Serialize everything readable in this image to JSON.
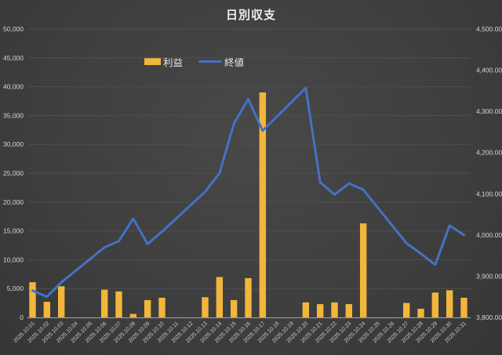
{
  "chart_data": {
    "type": "combo-bar-line",
    "title": "日別収支",
    "legend_position": "top",
    "grid": true,
    "categories": [
      "2025.10.01",
      "2025.10.02",
      "2025.10.03",
      "2025.10.04",
      "2025.10.05",
      "2025.10.06",
      "2025.10.07",
      "2025.10.08",
      "2025.10.09",
      "2025.10.10",
      "2025.10.11",
      "2025.10.12",
      "2025.10.13",
      "2025.10.14",
      "2025.10.15",
      "2025.10.16",
      "2025.10.17",
      "2025.10.18",
      "2025.10.19",
      "2025.10.20",
      "2025.10.21",
      "2025.10.22",
      "2025.10.23",
      "2025.10.24",
      "2025.10.25",
      "2025.10.26",
      "2025.10.27",
      "2025.10.28",
      "2025.10.29",
      "2025.10.30",
      "2025.10.31"
    ],
    "series": [
      {
        "name": "利益",
        "type": "bar",
        "axis": "left",
        "color": "#F2B63C",
        "values": [
          6100,
          2700,
          5400,
          null,
          null,
          4800,
          4500,
          600,
          3000,
          3400,
          null,
          null,
          3500,
          7000,
          3000,
          6800,
          39000,
          null,
          null,
          2600,
          2300,
          2600,
          2300,
          16300,
          null,
          null,
          2500,
          1500,
          4300,
          4700,
          3400
        ]
      },
      {
        "name": "終値",
        "type": "line",
        "axis": "right",
        "color": "#4472C4",
        "values": [
          3865,
          3850,
          3885,
          null,
          null,
          3970,
          3985,
          4040,
          3978,
          4008,
          null,
          null,
          4105,
          4150,
          4270,
          4330,
          4253,
          null,
          null,
          4357,
          4128,
          4098,
          4125,
          4110,
          null,
          null,
          3980,
          3955,
          3928,
          4023,
          4000
        ]
      }
    ],
    "left_axis": {
      "min": 0,
      "max": 50000,
      "step": 5000,
      "format": "integer-comma"
    },
    "right_axis": {
      "min": 3800,
      "max": 4500,
      "step": 100,
      "format": "two-decimals-comma"
    },
    "colors": {
      "background": "#3f3f3f",
      "gridline": "#4f4f4f",
      "axis_line": "#969696",
      "axis_text": "#d6d6d6",
      "title_text": "#ededed"
    }
  }
}
